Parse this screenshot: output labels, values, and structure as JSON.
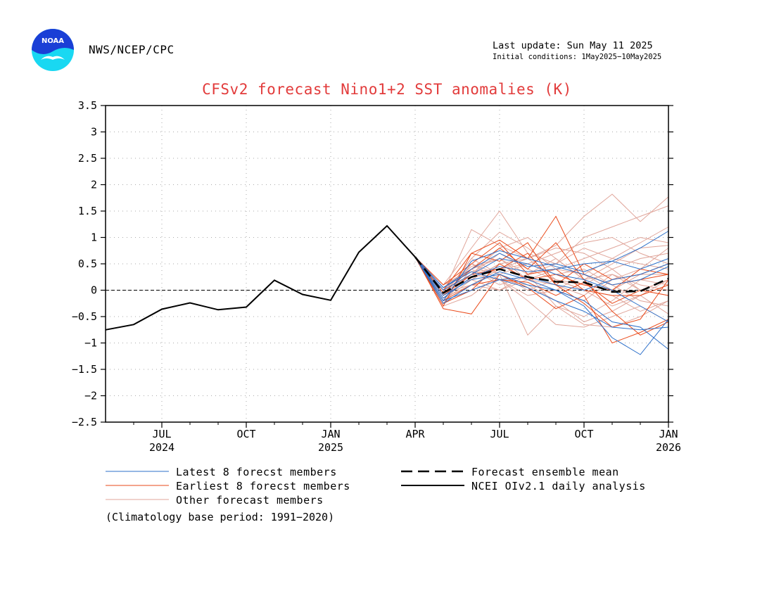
{
  "header": {
    "logo_text": "NOAA",
    "agency": "NWS/NCEP/CPC",
    "last_update": "Last update: Sun May 11 2025",
    "initial_conditions": "Initial conditions: 1May2025−10May2025"
  },
  "colors": {
    "title": "#e23b3b",
    "latest": "#2b6fc9",
    "earliest": "#ea4a1a",
    "other": "#e0a59a",
    "analysis": "#000000",
    "ensemble_mean": "#000000",
    "grid": "#aaaaaa",
    "logo_blue": "#1a3fd6",
    "logo_cyan": "#19d8f2"
  },
  "footnote": "(Climatology base period: 1991−2020)",
  "chart_data": {
    "type": "line",
    "title": "CFSv2 forecast Nino1+2 SST anomalies (K)",
    "xlabel": "",
    "ylabel": "",
    "ylim": [
      -2.5,
      3.5
    ],
    "yticks": [
      -2.5,
      -2,
      -1.5,
      -1,
      -0.5,
      0,
      0.5,
      1,
      1.5,
      2,
      2.5,
      3,
      3.5
    ],
    "ytick_labels": [
      "−2.5",
      "−2",
      "−1.5",
      "−1",
      "−0.5",
      "0",
      "0.5",
      "1",
      "1.5",
      "2",
      "2.5",
      "3",
      "3.5"
    ],
    "xlim": [
      "2024-05",
      "2026-01"
    ],
    "xticks": [
      {
        "x": "2024-07",
        "label": "JUL",
        "year": "2024"
      },
      {
        "x": "2024-10",
        "label": "OCT",
        "year": ""
      },
      {
        "x": "2025-01",
        "label": "JAN",
        "year": "2025"
      },
      {
        "x": "2025-04",
        "label": "APR",
        "year": ""
      },
      {
        "x": "2025-07",
        "label": "JUL",
        "year": ""
      },
      {
        "x": "2025-10",
        "label": "OCT",
        "year": ""
      },
      {
        "x": "2026-01",
        "label": "JAN",
        "year": "2026"
      }
    ],
    "grid": true,
    "zero_line": true,
    "legend": [
      {
        "label": "Latest 8 forecst members",
        "style": "latest"
      },
      {
        "label": "Earliest 8 forecst members",
        "style": "earliest"
      },
      {
        "label": "Other forecast members",
        "style": "other"
      },
      {
        "label": "Forecast ensemble mean",
        "style": "ensemble_mean"
      },
      {
        "label": "NCEI OIv2.1 daily analysis",
        "style": "analysis"
      }
    ],
    "forecast_x": [
      "2025-04",
      "2025-05",
      "2025-06",
      "2025-07",
      "2025-08",
      "2025-09",
      "2025-10",
      "2025-11",
      "2025-12",
      "2026-01"
    ],
    "analysis": {
      "name": "NCEI OIv2.1 daily analysis",
      "x": [
        "2024-05",
        "2024-06",
        "2024-07",
        "2024-08",
        "2024-09",
        "2024-10",
        "2024-11",
        "2024-12",
        "2025-01",
        "2025-02",
        "2025-03",
        "2025-04"
      ],
      "y": [
        -0.75,
        -0.65,
        -0.36,
        -0.24,
        -0.37,
        -0.32,
        0.19,
        -0.08,
        -0.19,
        0.72,
        1.22,
        0.63
      ]
    },
    "ensemble_mean": {
      "name": "Forecast ensemble mean",
      "y": [
        0.63,
        -0.05,
        0.25,
        0.4,
        0.25,
        0.16,
        0.15,
        -0.03,
        -0.02,
        0.22
      ]
    },
    "latest_members": [
      [
        0.63,
        -0.2,
        0.55,
        0.75,
        0.6,
        0.45,
        0.3,
        0.1,
        0.2,
        0.45
      ],
      [
        0.63,
        0.05,
        0.4,
        0.7,
        0.45,
        0.5,
        0.35,
        0.55,
        0.8,
        1.12
      ],
      [
        0.63,
        -0.1,
        0.2,
        0.3,
        0.1,
        0.0,
        -0.3,
        -0.9,
        -1.22,
        -0.55
      ],
      [
        0.63,
        -0.25,
        0.1,
        0.35,
        0.2,
        0.0,
        -0.2,
        -0.6,
        -0.7,
        -1.12
      ],
      [
        0.63,
        0.0,
        0.3,
        0.6,
        0.5,
        0.3,
        0.2,
        0.0,
        -0.3,
        -0.6
      ],
      [
        0.63,
        -0.15,
        0.25,
        0.45,
        0.35,
        0.4,
        0.5,
        0.55,
        0.4,
        0.6
      ],
      [
        0.63,
        -0.2,
        0.0,
        0.2,
        0.05,
        -0.2,
        -0.4,
        -0.7,
        -0.75,
        -0.7
      ],
      [
        0.63,
        0.05,
        0.35,
        0.2,
        0.25,
        0.1,
        0.0,
        0.2,
        0.3,
        0.5
      ]
    ],
    "earliest_members": [
      [
        0.63,
        -0.3,
        0.7,
        0.95,
        0.6,
        1.4,
        0.3,
        0.1,
        0.2,
        0.3
      ],
      [
        0.63,
        -0.05,
        0.4,
        0.8,
        0.4,
        0.9,
        0.2,
        -0.4,
        -0.85,
        -0.6
      ],
      [
        0.63,
        -0.35,
        -0.45,
        0.3,
        0.05,
        -0.35,
        -0.1,
        -1.0,
        -0.8,
        -0.55
      ],
      [
        0.63,
        0.0,
        0.7,
        0.55,
        0.9,
        0.1,
        -0.25,
        -0.7,
        -0.55,
        0.2
      ],
      [
        0.63,
        -0.25,
        0.0,
        0.5,
        0.2,
        0.3,
        0.1,
        0.0,
        0.4,
        0.3
      ],
      [
        0.63,
        -0.1,
        0.3,
        0.4,
        0.7,
        0.1,
        0.5,
        0.2,
        0.3,
        0.5
      ],
      [
        0.63,
        -0.2,
        0.1,
        0.2,
        0.15,
        -0.1,
        0.15,
        -0.25,
        0.0,
        -0.1
      ],
      [
        0.63,
        0.1,
        0.5,
        0.9,
        0.3,
        0.4,
        0.0,
        -0.1,
        -0.1,
        0.1
      ]
    ],
    "other_members": [
      [
        0.63,
        -0.05,
        1.15,
        0.85,
        0.6,
        0.85,
        1.4,
        1.82,
        1.3,
        1.77
      ],
      [
        0.63,
        0.1,
        0.8,
        1.5,
        0.7,
        0.5,
        1.0,
        1.2,
        1.4,
        1.6
      ],
      [
        0.63,
        -0.2,
        0.5,
        0.3,
        -0.85,
        -0.3,
        -0.65,
        -0.7,
        -0.5,
        -0.2
      ],
      [
        0.63,
        0.0,
        0.3,
        0.2,
        0.1,
        -0.2,
        -0.6,
        -0.4,
        -0.1,
        -0.45
      ],
      [
        0.63,
        -0.1,
        0.6,
        1.1,
        0.8,
        0.4,
        0.6,
        0.8,
        1.0,
        0.9
      ],
      [
        0.63,
        0.05,
        0.2,
        0.0,
        0.3,
        0.6,
        0.2,
        0.5,
        0.8,
        0.85
      ],
      [
        0.63,
        -0.25,
        0.4,
        0.6,
        0.2,
        0.1,
        -0.1,
        0.3,
        0.1,
        0.0
      ],
      [
        0.63,
        -0.15,
        0.1,
        0.4,
        0.5,
        0.3,
        0.4,
        0.1,
        -0.2,
        -0.3
      ],
      [
        0.63,
        0.0,
        0.5,
        0.2,
        -0.1,
        0.0,
        0.3,
        0.6,
        0.5,
        0.4
      ],
      [
        0.63,
        -0.05,
        0.3,
        0.7,
        0.4,
        0.2,
        0.0,
        -0.3,
        -0.1,
        0.2
      ],
      [
        0.63,
        -0.2,
        0.2,
        0.5,
        0.6,
        0.8,
        0.7,
        0.4,
        0.6,
        0.7
      ],
      [
        0.63,
        0.1,
        0.4,
        0.1,
        0.3,
        -0.3,
        -0.5,
        -0.2,
        0.2,
        0.1
      ],
      [
        0.63,
        -0.3,
        -0.1,
        0.3,
        0.0,
        0.2,
        0.0,
        -0.1,
        -0.4,
        -0.2
      ],
      [
        0.63,
        -0.1,
        0.6,
        0.3,
        0.5,
        0.7,
        0.9,
        1.0,
        0.7,
        0.5
      ],
      [
        0.63,
        0.05,
        0.2,
        0.5,
        0.2,
        0.0,
        -0.2,
        0.2,
        0.4,
        0.8
      ],
      [
        0.63,
        -0.15,
        0.3,
        0.8,
        1.0,
        0.6,
        0.2,
        0.3,
        0.0,
        -0.1
      ],
      [
        0.63,
        -0.05,
        0.1,
        0.0,
        0.2,
        0.4,
        0.3,
        0.0,
        0.3,
        0.3
      ],
      [
        0.63,
        0.0,
        0.45,
        0.6,
        0.3,
        0.5,
        0.8,
        0.6,
        0.9,
        1.2
      ],
      [
        0.63,
        -0.25,
        0.0,
        0.2,
        -0.2,
        -0.65,
        -0.7,
        -0.5,
        -0.3,
        -0.6
      ],
      [
        0.63,
        0.1,
        0.35,
        0.4,
        0.6,
        0.2,
        0.1,
        0.4,
        0.0,
        0.2
      ]
    ]
  }
}
